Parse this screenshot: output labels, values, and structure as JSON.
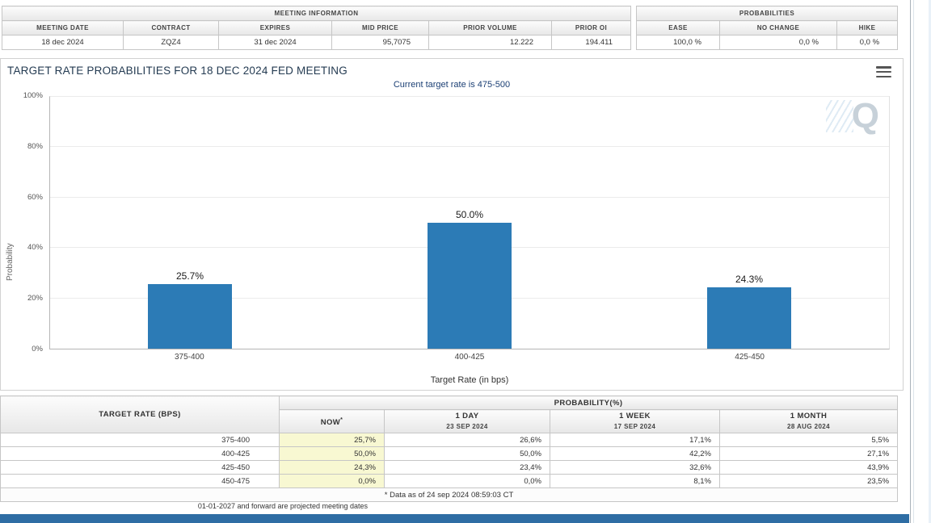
{
  "colors": {
    "bar": "#2c7bb6",
    "bottom_bar": "#2e6da4",
    "now_column_bg": "#f8f8d2",
    "subtitle_text": "#1b3f74"
  },
  "meeting_info": {
    "title": "MEETING INFORMATION",
    "columns": [
      "MEETING DATE",
      "CONTRACT",
      "EXPIRES",
      "MID PRICE",
      "PRIOR VOLUME",
      "PRIOR OI"
    ],
    "row": [
      "18 dec 2024",
      "ZQZ4",
      "31 dec 2024",
      "95,7075",
      "12.222",
      "194.411"
    ]
  },
  "probabilities": {
    "title": "PROBABILITIES",
    "columns": [
      "EASE",
      "NO CHANGE",
      "HIKE"
    ],
    "row": [
      "100,0 %",
      "0,0 %",
      "0,0 %"
    ]
  },
  "chart": {
    "title": "TARGET RATE PROBABILITIES FOR 18 DEC 2024 FED MEETING",
    "subtitle": "Current target rate is 475-500",
    "watermark": "Q"
  },
  "chart_data": {
    "type": "bar",
    "title": "TARGET RATE PROBABILITIES FOR 18 DEC 2024 FED MEETING",
    "subtitle": "Current target rate is 475-500",
    "categories": [
      "375-400",
      "400-425",
      "425-450"
    ],
    "values": [
      25.7,
      50.0,
      24.3
    ],
    "labels": [
      "25.7%",
      "50.0%",
      "24.3%"
    ],
    "xlabel": "Target Rate (in bps)",
    "ylabel": "Probability",
    "ylim": [
      0,
      100
    ],
    "yticks": [
      0,
      20,
      40,
      60,
      80,
      100
    ],
    "grid": true,
    "legend": false,
    "bar_color": "#2c7bb6"
  },
  "table": {
    "header_left": "TARGET RATE (BPS)",
    "header_right": "PROBABILITY(%)",
    "sub_headers": [
      {
        "label": "NOW",
        "sup": "*"
      },
      {
        "label": "1 DAY",
        "date": "23 SEP 2024"
      },
      {
        "label": "1 WEEK",
        "date": "17 SEP 2024"
      },
      {
        "label": "1 MONTH",
        "date": "28 AUG 2024"
      }
    ],
    "rows": [
      {
        "rate": "375-400",
        "values": [
          "25,7%",
          "26,6%",
          "17,1%",
          "5,5%"
        ]
      },
      {
        "rate": "400-425",
        "values": [
          "50,0%",
          "50,0%",
          "42,2%",
          "27,1%"
        ]
      },
      {
        "rate": "425-450",
        "values": [
          "24,3%",
          "23,4%",
          "32,6%",
          "43,9%"
        ]
      },
      {
        "rate": "450-475",
        "values": [
          "0,0%",
          "0,0%",
          "8,1%",
          "23,5%"
        ]
      }
    ],
    "footnote": "* Data as of 24 sep 2024 08:59:03 CT"
  },
  "footer": {
    "projected_note": "01-01-2027 and forward are projected meeting dates"
  }
}
